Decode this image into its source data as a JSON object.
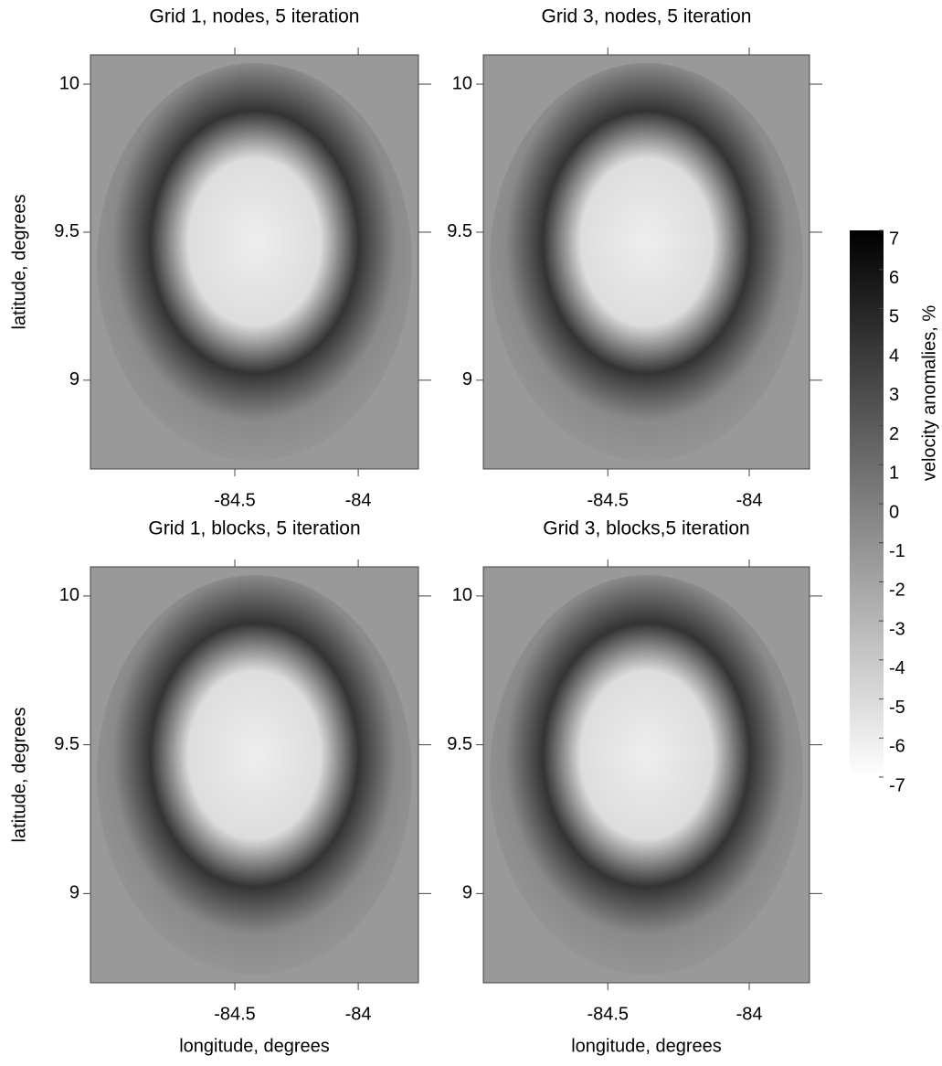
{
  "chart_data": [
    {
      "type": "image",
      "title": "Grid 1, nodes, 5 iteration",
      "ylabel": "latitude, degrees",
      "xlim": [
        -85.085,
        -83.756
      ],
      "ylim": [
        8.7,
        10.099
      ],
      "xticks": [
        -84.5,
        -84
      ],
      "yticks": [
        9,
        9.5,
        10
      ]
    },
    {
      "type": "image",
      "title": "Grid 3, nodes, 5 iteration",
      "xlim": [
        -84.94,
        -83.787
      ],
      "ylim": [
        8.7,
        10.099
      ],
      "xticks": [
        -84.5,
        -84
      ],
      "yticks": [
        9,
        9.5,
        10
      ]
    },
    {
      "type": "image",
      "title": "Grid 1, blocks, 5 iteration",
      "xlabel": "longitude, degrees",
      "ylabel": "latitude, degrees",
      "xlim": [
        -85.085,
        -83.756
      ],
      "ylim": [
        8.7,
        10.098
      ],
      "xticks": [
        -84.5,
        -84
      ],
      "yticks": [
        9,
        9.5,
        10
      ]
    },
    {
      "type": "image",
      "title": "Grid 3, blocks,5 iteration",
      "xlabel": "longitude, degrees",
      "xlim": [
        -84.94,
        -83.787
      ],
      "ylim": [
        8.7,
        10.098
      ],
      "xticks": [
        -84.5,
        -84
      ],
      "yticks": [
        9,
        9.5,
        10
      ]
    }
  ],
  "colorbar": {
    "label": "velocity anomalies, %",
    "lim": [
      -7,
      7
    ],
    "ticks": [
      -7,
      -6,
      -5,
      -4,
      -3,
      -2,
      -1,
      0,
      1,
      2,
      3,
      4,
      5,
      6,
      7
    ]
  }
}
